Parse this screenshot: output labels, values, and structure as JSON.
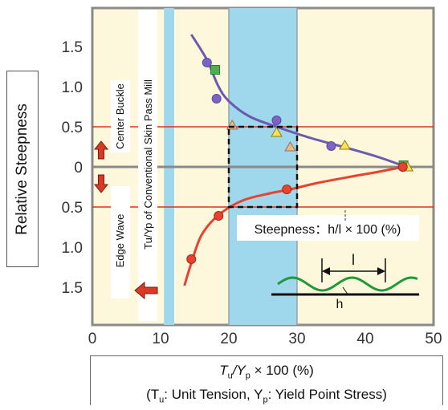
{
  "chart_data": {
    "type": "scatter",
    "xlim": [
      0,
      50
    ],
    "x_ticks": [
      "0",
      "10",
      "20",
      "30",
      "40",
      "50"
    ],
    "y_ticks_upper": [
      "1.5",
      "1.0",
      "0.5",
      "0"
    ],
    "y_ticks_lower": [
      "0.5",
      "1.0",
      "1.5"
    ],
    "ylabel": "Relative Steepness",
    "xlabel_line1_prefix": "T",
    "xlabel_line1_sub1": "u",
    "xlabel_line1_mid": "/Y",
    "xlabel_line1_sub2": "p",
    "xlabel_line1_suffix": "  × 100 (%)",
    "xlabel_line2_a": "(T",
    "xlabel_line2_sub_a": "u",
    "xlabel_line2_b": ": Unit Tension, Y",
    "xlabel_line2_sub_b": "p",
    "xlabel_line2_c": ": Yield Point Stress)",
    "labels": {
      "center_buckle": "Center Buckle",
      "edge_wave": "Edge Wave",
      "conventional": "Tu/Yp of Conventional Skin Pass Mill",
      "steepness_formula": "Steepness：h/l × 100 (%)",
      "l_symbol": "l",
      "h_symbol": "h"
    },
    "bands": [
      {
        "x_from": 10.5,
        "x_to": 12,
        "color": "#9fd8ec"
      },
      {
        "x_from": 20,
        "x_to": 30,
        "color": "#9fd8ec"
      }
    ],
    "dashed_box": {
      "x_from": 20,
      "x_to": 30,
      "y_from": -0.5,
      "y_to": 0.5
    },
    "reference_lines_y": [
      0.5,
      -0.5
    ],
    "colors": {
      "background": "#fdf8dc",
      "band": "#9fd8ec",
      "center_curve": "#6b5bb0",
      "edge_curve": "#e8432e",
      "ref_line": "#e03020",
      "arrow": "#d83a25",
      "wave": "#1f9a3a"
    },
    "center_curve": [
      [
        14.5,
        1.65
      ],
      [
        16,
        1.45
      ],
      [
        17,
        1.3
      ],
      [
        18.5,
        1.0
      ],
      [
        20,
        0.82
      ],
      [
        23,
        0.63
      ],
      [
        27,
        0.5
      ],
      [
        32,
        0.36
      ],
      [
        38,
        0.22
      ],
      [
        42,
        0.12
      ],
      [
        46,
        0.0
      ]
    ],
    "edge_curve": [
      [
        13.5,
        -1.48
      ],
      [
        14.5,
        -1.2
      ],
      [
        16,
        -0.85
      ],
      [
        18.5,
        -0.6
      ],
      [
        22,
        -0.42
      ],
      [
        26,
        -0.33
      ],
      [
        29,
        -0.28
      ],
      [
        33,
        -0.2
      ],
      [
        38,
        -0.12
      ],
      [
        42,
        -0.06
      ],
      [
        45.5,
        0.0
      ]
    ],
    "circles_purple": [
      [
        16.8,
        1.3
      ],
      [
        18.2,
        0.85
      ],
      [
        27,
        0.58
      ],
      [
        35,
        0.26
      ],
      [
        45.5,
        0.0
      ]
    ],
    "squares_green": [
      [
        18,
        1.21
      ],
      [
        45.6,
        0.02
      ]
    ],
    "triangles_tan": [
      [
        20.5,
        0.52
      ],
      [
        29,
        0.25
      ]
    ],
    "triangles_yellow": [
      [
        27,
        0.43
      ],
      [
        37,
        0.27
      ],
      [
        46.2,
        0.0
      ]
    ],
    "circles_red": [
      [
        14.5,
        -1.15
      ],
      [
        18.5,
        -0.61
      ],
      [
        28.5,
        -0.28
      ],
      [
        45.5,
        0.0
      ]
    ]
  }
}
